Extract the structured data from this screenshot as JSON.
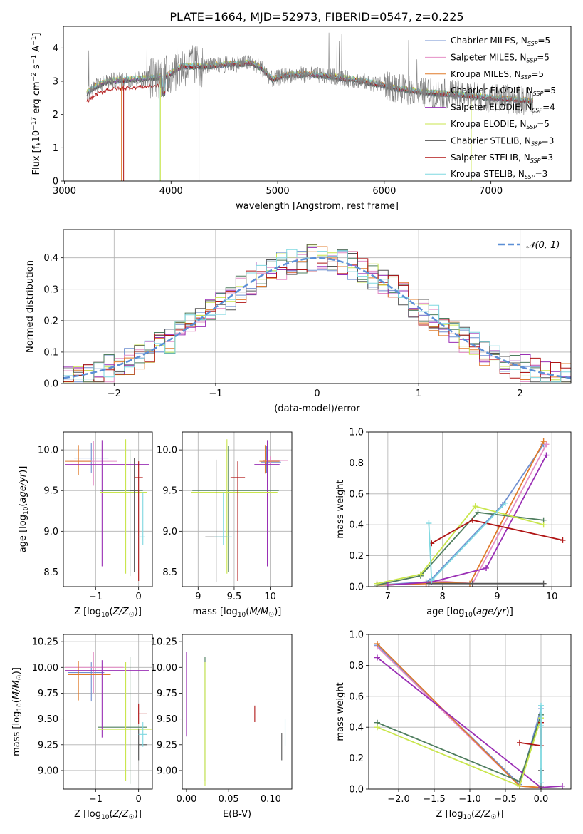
{
  "figure_title": "PLATE=1664, MJD=52973, FIBERID=0547, z=0.225",
  "colors": {
    "chabrier_miles": "#6f8fd0",
    "salpeter_miles": "#e48fc6",
    "kroupa_miles": "#e07b2a",
    "chabrier_elodie": "#4e7d5e",
    "salpeter_elodie": "#9a2fb5",
    "kroupa_elodie": "#c9e64c",
    "chabrier_stelib": "#555555",
    "salpeter_stelib": "#b01515",
    "kroupa_stelib": "#7fd8e0",
    "data": "#808080",
    "gaussian": "#5b8fd6",
    "grid": "#b0b0b0"
  },
  "chart_data": [
    {
      "type": "line",
      "id": "spectrum",
      "title": "PLATE=1664, MJD=52973, FIBERID=0547, z=0.225",
      "xlabel": "wavelength [Angstrom, rest frame]",
      "ylabel": "Flux [f_λ 10^-17 erg cm^-2 s^-1 A^-1]",
      "xlim": [
        2990,
        7750
      ],
      "ylim": [
        0,
        4.65
      ],
      "xticks": [
        3000,
        4000,
        5000,
        6000,
        7000
      ],
      "yticks": [
        0,
        1,
        2,
        3,
        4
      ],
      "grid": false,
      "legend_position": "top-right",
      "data_x_range": [
        3210,
        7395
      ],
      "continuum": {
        "x": [
          3210,
          3300,
          3400,
          3600,
          3800,
          3950,
          4100,
          4300,
          4500,
          4750,
          4850,
          4950,
          5100,
          5300,
          5500,
          5800,
          6100,
          6400,
          6700,
          7000,
          7395
        ],
        "y": [
          2.65,
          2.85,
          3.0,
          3.05,
          3.1,
          3.15,
          3.45,
          3.45,
          3.5,
          3.55,
          3.4,
          3.05,
          3.2,
          3.2,
          3.15,
          3.0,
          2.8,
          2.65,
          2.6,
          2.5,
          2.4
        ]
      },
      "legend": [
        {
          "label": "Chabrier MILES, N",
          "sub": "SSP",
          "suffix": "=5",
          "color_key": "chabrier_miles"
        },
        {
          "label": "Salpeter MILES, N",
          "sub": "SSP",
          "suffix": "=5",
          "color_key": "salpeter_miles"
        },
        {
          "label": "Kroupa MILES, N",
          "sub": "SSP",
          "suffix": "=5",
          "color_key": "kroupa_miles"
        },
        {
          "label": "Chabrier ELODIE, N",
          "sub": "SSP",
          "suffix": "=5",
          "color_key": "chabrier_elodie"
        },
        {
          "label": "Salpeter ELODIE, N",
          "sub": "SSP",
          "suffix": "=4",
          "color_key": "salpeter_elodie"
        },
        {
          "label": "Kroupa ELODIE, N",
          "sub": "SSP",
          "suffix": "=5",
          "color_key": "kroupa_elodie"
        },
        {
          "label": "Chabrier STELIB, N",
          "sub": "SSP",
          "suffix": "=3",
          "color_key": "chabrier_stelib"
        },
        {
          "label": "Salpeter STELIB, N",
          "sub": "SSP",
          "suffix": "=3",
          "color_key": "salpeter_stelib"
        },
        {
          "label": "Kroupa STELIB, N",
          "sub": "SSP",
          "suffix": "=3",
          "color_key": "kroupa_stelib"
        }
      ]
    },
    {
      "type": "line",
      "id": "residuals",
      "xlabel": "(data-model)/error",
      "ylabel": "Normed distribution",
      "xlim": [
        -2.5,
        2.5
      ],
      "ylim": [
        0,
        0.49
      ],
      "xticks": [
        -2,
        -1,
        0,
        1,
        2
      ],
      "yticks": [
        0.0,
        0.1,
        0.2,
        0.3,
        0.4
      ],
      "grid": true,
      "legend_position": "top-right",
      "legend": [
        {
          "label": "𝒩(0, 1)",
          "color_key": "gaussian",
          "dashed": true
        }
      ],
      "gaussian": {
        "mean": 0,
        "sigma": 1
      },
      "bin_width": 0.1
    },
    {
      "type": "scatter",
      "id": "age_vs_z",
      "xlabel": "Z [log10(Z/Z☉)]",
      "ylabel": "age [log10(age/yr)]",
      "xlim": [
        -1.75,
        0.32
      ],
      "ylim": [
        8.32,
        10.22
      ],
      "xticks": [
        -1,
        0
      ],
      "yticks": [
        8.5,
        9.0,
        9.5,
        10.0
      ],
      "grid": true,
      "points": [
        {
          "color_key": "chabrier_miles",
          "x": -1.1,
          "xerr": [
            0.4,
            0.4
          ],
          "y": 9.9,
          "yerr": [
            0.18,
            0.18
          ]
        },
        {
          "color_key": "salpeter_miles",
          "x": -1.05,
          "xerr": [
            0.55,
            0.55
          ],
          "y": 9.86,
          "yerr": [
            0.3,
            0.25
          ]
        },
        {
          "color_key": "kroupa_miles",
          "x": -1.4,
          "xerr": [
            0.3,
            0.3
          ],
          "y": 9.86,
          "yerr": [
            0.17,
            0.2
          ]
        },
        {
          "color_key": "chabrier_elodie",
          "x": -0.2,
          "xerr": [
            0.7,
            0.3
          ],
          "y": 9.5,
          "yerr": [
            1.05,
            0.5
          ]
        },
        {
          "color_key": "salpeter_elodie",
          "x": -0.85,
          "xerr": [
            0.85,
            1.1
          ],
          "y": 9.82,
          "yerr": [
            1.25,
            0.3
          ]
        },
        {
          "color_key": "kroupa_elodie",
          "x": -0.3,
          "xerr": [
            0.6,
            0.5
          ],
          "y": 9.48,
          "yerr": [
            1.0,
            0.65
          ]
        },
        {
          "color_key": "chabrier_stelib",
          "x": -0.1,
          "xerr": [
            0.1,
            0.1
          ],
          "y": 9.5,
          "yerr": [
            1.0,
            0.4
          ]
        },
        {
          "color_key": "salpeter_stelib",
          "x": 0.0,
          "xerr": [
            0.1,
            0.1
          ],
          "y": 9.66,
          "yerr": [
            1.27,
            0.2
          ]
        },
        {
          "color_key": "kroupa_stelib",
          "x": 0.1,
          "xerr": [
            0.1,
            0.05
          ],
          "y": 8.93,
          "yerr": [
            0.1,
            0.55
          ]
        }
      ]
    },
    {
      "type": "scatter",
      "id": "age_vs_mass",
      "xlabel": "mass [log10(M/M☉)]",
      "ylabel": "",
      "xlim": [
        8.78,
        10.3
      ],
      "ylim": [
        8.32,
        10.22
      ],
      "xticks": [
        9.0,
        9.5,
        10.0
      ],
      "yticks": [
        8.5,
        9.0,
        9.5,
        10.0
      ],
      "grid": true,
      "points": [
        {
          "color_key": "chabrier_miles",
          "x": 9.95,
          "xerr": [
            0.08,
            0.2
          ],
          "y": 9.85,
          "yerr": [
            0.13,
            0.2
          ]
        },
        {
          "color_key": "salpeter_miles",
          "x": 10.0,
          "xerr": [
            0.1,
            0.25
          ],
          "y": 9.87,
          "yerr": [
            0.05,
            0.05
          ]
        },
        {
          "color_key": "kroupa_miles",
          "x": 9.93,
          "xerr": [
            0.08,
            0.2
          ],
          "y": 9.86,
          "yerr": [
            0.15,
            0.2
          ]
        },
        {
          "color_key": "chabrier_elodie",
          "x": 9.42,
          "xerr": [
            0.5,
            0.7
          ],
          "y": 9.5,
          "yerr": [
            1.0,
            0.55
          ]
        },
        {
          "color_key": "salpeter_elodie",
          "x": 9.96,
          "xerr": [
            0.18,
            0.17
          ],
          "y": 9.82,
          "yerr": [
            1.25,
            0.3
          ]
        },
        {
          "color_key": "kroupa_elodie",
          "x": 9.4,
          "xerr": [
            0.5,
            0.7
          ],
          "y": 9.48,
          "yerr": [
            1.0,
            0.65
          ]
        },
        {
          "color_key": "chabrier_stelib",
          "x": 9.25,
          "xerr": [
            0.15,
            0.15
          ],
          "y": 8.93,
          "yerr": [
            0.55,
            0.95
          ]
        },
        {
          "color_key": "salpeter_stelib",
          "x": 9.55,
          "xerr": [
            0.1,
            0.1
          ],
          "y": 9.66,
          "yerr": [
            1.27,
            0.2
          ]
        },
        {
          "color_key": "kroupa_stelib",
          "x": 9.35,
          "xerr": [
            0.12,
            0.12
          ],
          "y": 8.93,
          "yerr": [
            0.1,
            0.55
          ]
        }
      ]
    },
    {
      "type": "line",
      "id": "weight_vs_age",
      "xlabel": "age [log10(age/yr)]",
      "ylabel": "mass weight",
      "xlim": [
        6.65,
        10.35
      ],
      "ylim": [
        0,
        1.0
      ],
      "xticks": [
        7,
        8,
        9,
        10
      ],
      "yticks": [
        0.0,
        0.2,
        0.4,
        0.6,
        0.8,
        1.0
      ],
      "grid": true,
      "series": [
        {
          "color_key": "chabrier_miles",
          "x": [
            6.8,
            7.7,
            7.8,
            9.1,
            9.85
          ],
          "y": [
            0.01,
            0.03,
            0.05,
            0.53,
            0.92
          ]
        },
        {
          "color_key": "salpeter_miles",
          "x": [
            6.8,
            7.7,
            7.8,
            8.55,
            9.9
          ],
          "y": [
            0.01,
            0.02,
            0.04,
            0.02,
            0.92
          ]
        },
        {
          "color_key": "kroupa_miles",
          "x": [
            6.8,
            7.7,
            7.8,
            8.5,
            9.85
          ],
          "y": [
            0.01,
            0.02,
            0.03,
            0.02,
            0.94
          ]
        },
        {
          "color_key": "chabrier_elodie",
          "x": [
            6.8,
            7.6,
            8.65,
            9.85
          ],
          "y": [
            0.01,
            0.07,
            0.48,
            0.43
          ]
        },
        {
          "color_key": "salpeter_elodie",
          "x": [
            7.0,
            7.8,
            8.8,
            9.9
          ],
          "y": [
            0.01,
            0.03,
            0.12,
            0.85
          ]
        },
        {
          "color_key": "kroupa_elodie",
          "x": [
            6.8,
            7.6,
            8.6,
            9.85
          ],
          "y": [
            0.02,
            0.08,
            0.52,
            0.4
          ]
        },
        {
          "color_key": "chabrier_stelib",
          "x": [
            7.75,
            8.55,
            9.85
          ],
          "y": [
            0.02,
            0.02,
            0.02
          ]
        },
        {
          "color_key": "salpeter_stelib",
          "x": [
            7.8,
            8.55,
            10.2
          ],
          "y": [
            0.28,
            0.43,
            0.3
          ]
        },
        {
          "color_key": "kroupa_stelib",
          "x": [
            7.75,
            7.8,
            9.15
          ],
          "y": [
            0.41,
            0.04,
            0.54
          ]
        }
      ]
    },
    {
      "type": "scatter",
      "id": "mass_vs_z",
      "xlabel": "Z [log10(Z/Z☉)]",
      "ylabel": "mass [log10(M/M☉)]",
      "xlim": [
        -1.75,
        0.32
      ],
      "ylim": [
        8.82,
        10.32
      ],
      "xticks": [
        -1,
        0
      ],
      "yticks": [
        9.0,
        9.25,
        9.5,
        9.75,
        10.0,
        10.25
      ],
      "grid": true,
      "points": [
        {
          "color_key": "chabrier_miles",
          "x": -1.1,
          "xerr": [
            0.55,
            0.3
          ],
          "y": 9.95,
          "yerr": [
            0.28,
            0.1
          ]
        },
        {
          "color_key": "salpeter_miles",
          "x": -1.05,
          "xerr": [
            0.65,
            0.7
          ],
          "y": 10.0,
          "yerr": [
            0.25,
            0.15
          ]
        },
        {
          "color_key": "kroupa_miles",
          "x": -1.4,
          "xerr": [
            0.25,
            0.75
          ],
          "y": 9.93,
          "yerr": [
            0.25,
            0.13
          ]
        },
        {
          "color_key": "chabrier_elodie",
          "x": -0.2,
          "xerr": [
            0.75,
            0.4
          ],
          "y": 9.42,
          "yerr": [
            0.55,
            0.68
          ]
        },
        {
          "color_key": "salpeter_elodie",
          "x": -0.85,
          "xerr": [
            0.85,
            1.1
          ],
          "y": 9.97,
          "yerr": [
            0.65,
            0.1
          ]
        },
        {
          "color_key": "kroupa_elodie",
          "x": -0.3,
          "xerr": [
            0.65,
            0.6
          ],
          "y": 9.4,
          "yerr": [
            0.5,
            0.65
          ]
        },
        {
          "color_key": "chabrier_stelib",
          "x": 0.0,
          "xerr": [
            0.0,
            0.2
          ],
          "y": 9.25,
          "yerr": [
            0.15,
            0.15
          ]
        },
        {
          "color_key": "salpeter_stelib",
          "x": 0.0,
          "xerr": [
            0.0,
            0.2
          ],
          "y": 9.55,
          "yerr": [
            0.1,
            0.1
          ]
        },
        {
          "color_key": "kroupa_stelib",
          "x": 0.1,
          "xerr": [
            0.1,
            0.1
          ],
          "y": 9.35,
          "yerr": [
            0.12,
            0.12
          ]
        }
      ]
    },
    {
      "type": "scatter",
      "id": "mass_vs_ebv",
      "xlabel": "E(B-V)",
      "ylabel": "",
      "xlim": [
        -0.005,
        0.125
      ],
      "ylim": [
        8.82,
        10.32
      ],
      "xticks": [
        0.0,
        0.05,
        0.1
      ],
      "xtick_labels": [
        "0.00",
        "0.05",
        "0.10"
      ],
      "yticks": [
        9.0,
        9.25,
        9.5,
        9.75,
        10.0,
        10.25
      ],
      "grid": false,
      "points": [
        {
          "color_key": "salpeter_elodie",
          "x": 0.0,
          "xerr": [
            0,
            0
          ],
          "y": 9.75,
          "yerr": [
            0.42,
            0.4
          ]
        },
        {
          "color_key": "chabrier_elodie",
          "x": 0.022,
          "xerr": [
            0,
            0
          ],
          "y": 9.5,
          "yerr": [
            0.6,
            0.6
          ]
        },
        {
          "color_key": "kroupa_elodie",
          "x": 0.022,
          "xerr": [
            0,
            0
          ],
          "y": 9.45,
          "yerr": [
            0.6,
            0.6
          ]
        },
        {
          "color_key": "salpeter_stelib",
          "x": 0.081,
          "xerr": [
            0,
            0
          ],
          "y": 9.55,
          "yerr": [
            0.08,
            0.08
          ]
        },
        {
          "color_key": "chabrier_stelib",
          "x": 0.113,
          "xerr": [
            0,
            0
          ],
          "y": 9.23,
          "yerr": [
            0.13,
            0.13
          ]
        },
        {
          "color_key": "kroupa_stelib",
          "x": 0.117,
          "xerr": [
            0,
            0
          ],
          "y": 9.37,
          "yerr": [
            0.13,
            0.13
          ]
        }
      ]
    },
    {
      "type": "line",
      "id": "weight_vs_z",
      "xlabel": "Z [log10(Z/Z☉)]",
      "ylabel": "mass weight",
      "xlim": [
        -2.42,
        0.42
      ],
      "ylim": [
        0,
        1.0
      ],
      "xticks": [
        -2.0,
        -1.5,
        -1.0,
        -0.5,
        0.0
      ],
      "xtick_labels": [
        "−2.0",
        "−1.5",
        "−1.0",
        "−0.5",
        "0.0"
      ],
      "yticks": [
        0.0,
        0.2,
        0.4,
        0.6,
        0.8,
        1.0
      ],
      "grid": true,
      "series": [
        {
          "color_key": "chabrier_miles",
          "x": [
            -2.3,
            -0.3,
            0.0
          ],
          "y": [
            0.93,
            0.03,
            0.52
          ]
        },
        {
          "color_key": "salpeter_miles",
          "x": [
            -2.3,
            -0.3,
            0.0
          ],
          "y": [
            0.92,
            0.02,
            0.01
          ]
        },
        {
          "color_key": "kroupa_miles",
          "x": [
            -2.3,
            -0.3,
            0.0
          ],
          "y": [
            0.94,
            0.02,
            0.01
          ]
        },
        {
          "color_key": "chabrier_elodie",
          "x": [
            -2.3,
            -0.3,
            0.0
          ],
          "y": [
            0.43,
            0.05,
            0.48
          ]
        },
        {
          "color_key": "salpeter_elodie",
          "x": [
            -2.3,
            0.0,
            0.3
          ],
          "y": [
            0.85,
            0.01,
            0.02
          ]
        },
        {
          "color_key": "kroupa_elodie",
          "x": [
            -2.3,
            -0.3,
            0.0
          ],
          "y": [
            0.4,
            0.02,
            0.46
          ]
        },
        {
          "color_key": "chabrier_stelib",
          "x": [
            0.0,
            0.0
          ],
          "y": [
            0.02,
            0.12
          ]
        },
        {
          "color_key": "salpeter_stelib",
          "x": [
            -0.3,
            0.0,
            0.0
          ],
          "y": [
            0.3,
            0.28,
            0.43
          ]
        },
        {
          "color_key": "kroupa_stelib",
          "x": [
            0.0,
            0.0,
            0.0
          ],
          "y": [
            0.04,
            0.41,
            0.54
          ]
        }
      ]
    }
  ]
}
